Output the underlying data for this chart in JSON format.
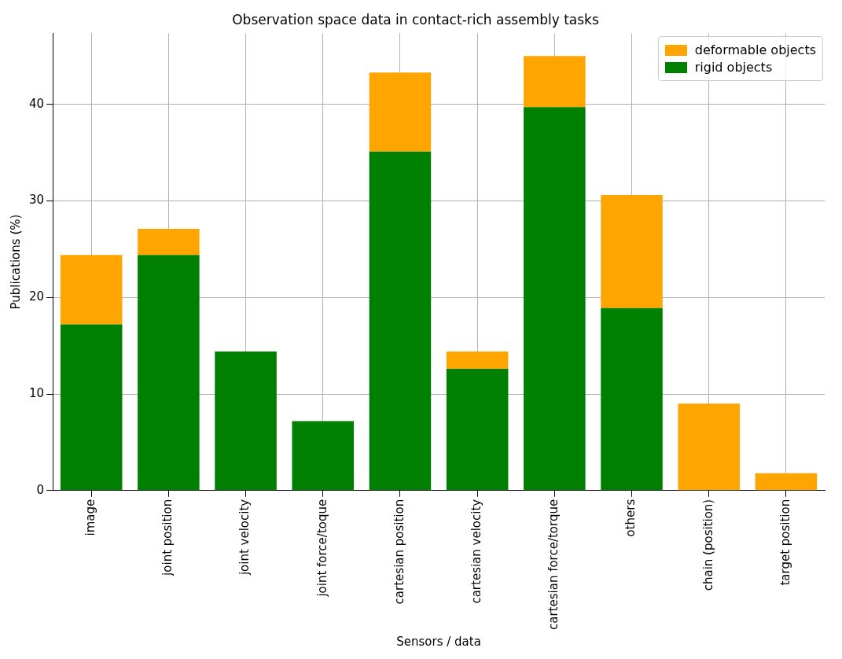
{
  "chart_data": {
    "type": "bar",
    "title": "Observation space data in contact-rich assembly tasks",
    "xlabel": "Sensors / data",
    "ylabel": "Publications (%)",
    "categories": [
      "image",
      "joint position",
      "joint velocity",
      "joint force/toque",
      "cartesian position",
      "cartesian velocity",
      "cartesian force/torque",
      "others",
      "chain (position)",
      "target position"
    ],
    "stacked": true,
    "series": [
      {
        "name": "rigid objects",
        "color": "#008000",
        "values": [
          17.2,
          24.4,
          14.4,
          7.2,
          35.1,
          12.6,
          39.7,
          18.9,
          0,
          0
        ]
      },
      {
        "name": "deformable objects",
        "color": "#ffa500",
        "values": [
          7.2,
          2.7,
          0,
          0,
          8.2,
          1.8,
          5.3,
          11.7,
          9.0,
          1.8
        ]
      }
    ],
    "ylim": [
      0,
      47.35
    ],
    "yticks": [
      0,
      10,
      20,
      30,
      40
    ],
    "grid": true,
    "legend": "top right"
  }
}
